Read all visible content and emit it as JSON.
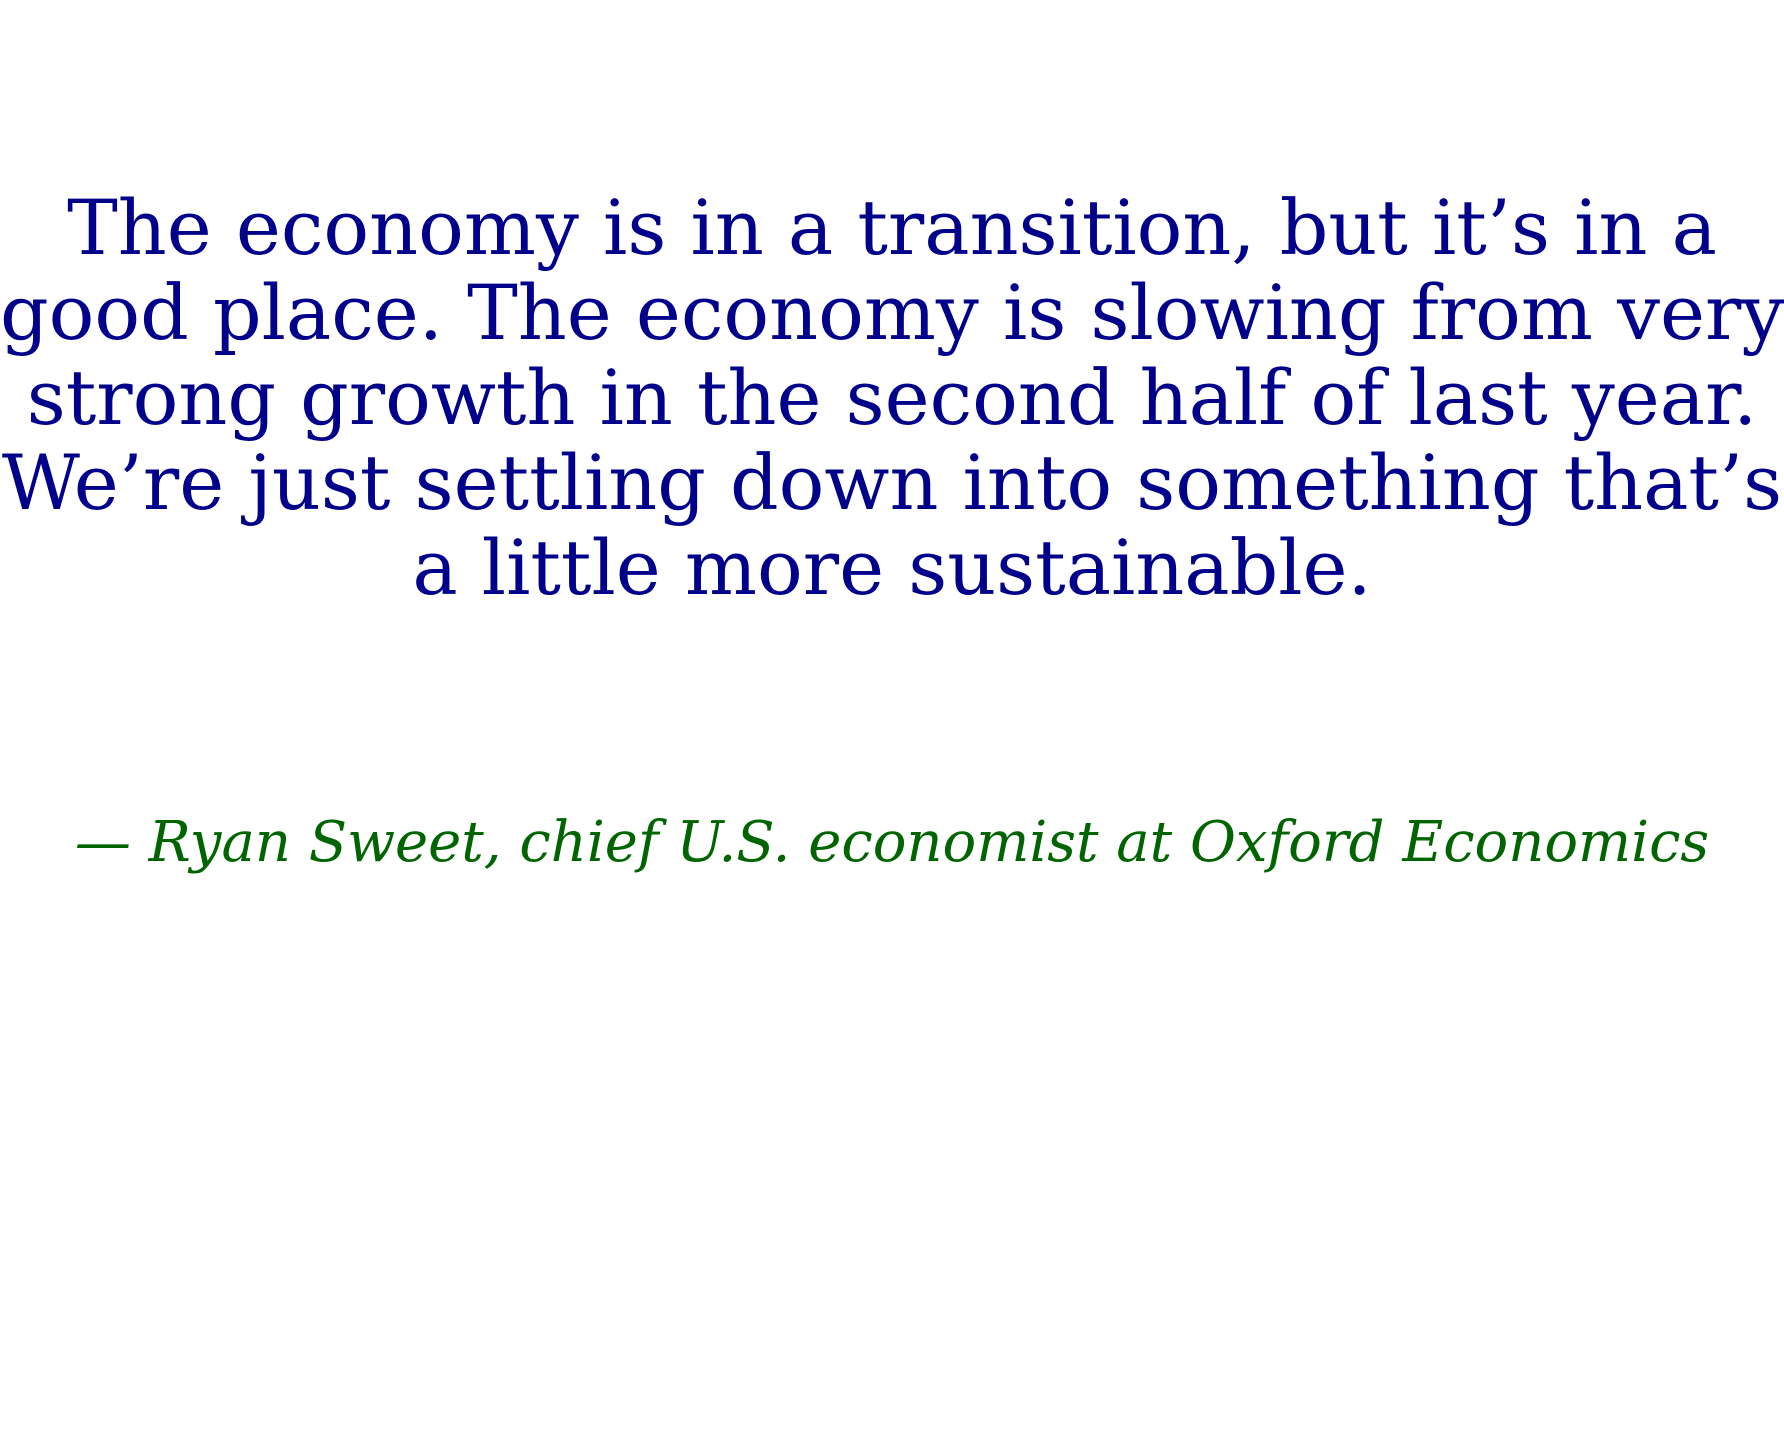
{
  "quote": {
    "lines": [
      "The economy is in a transition, but it’s in a",
      "good place. The economy is slowing from very",
      "strong growth in the second half of last year.",
      "We’re just settling down into something that’s",
      "a little more sustainable."
    ],
    "color": "#00008b"
  },
  "attribution": {
    "text": "— Ryan Sweet, chief U.S. economist at Oxford Economics",
    "color": "#006400"
  }
}
